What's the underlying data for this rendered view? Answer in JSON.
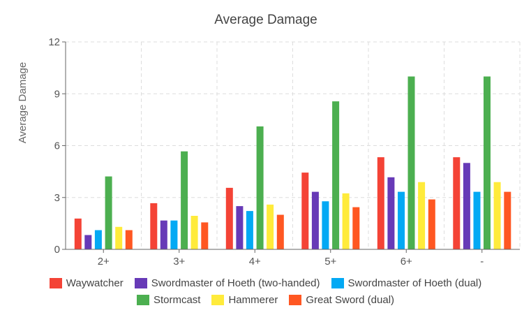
{
  "chart_data": {
    "type": "bar",
    "title": "Average Damage",
    "xlabel": "",
    "ylabel": "Average Damage",
    "ylim": [
      0,
      12
    ],
    "yticks": [
      0,
      3,
      6,
      9,
      12
    ],
    "grid": true,
    "categories": [
      "2+",
      "3+",
      "4+",
      "5+",
      "6+",
      "-"
    ],
    "series": [
      {
        "name": "Waywatcher",
        "color": "#f44336",
        "values": [
          1.78,
          2.67,
          3.56,
          4.44,
          5.33,
          5.33
        ]
      },
      {
        "name": "Swordmaster of Hoeth (two-handed)",
        "color": "#673ab7",
        "values": [
          0.83,
          1.67,
          2.5,
          3.33,
          4.17,
          5.0
        ]
      },
      {
        "name": "Swordmaster of Hoeth (dual)",
        "color": "#03a9f4",
        "values": [
          1.11,
          1.67,
          2.22,
          2.78,
          3.33,
          3.33
        ]
      },
      {
        "name": "Stormcast",
        "color": "#4caf50",
        "values": [
          4.22,
          5.67,
          7.11,
          8.56,
          10.0,
          10.0
        ]
      },
      {
        "name": "Hammerer",
        "color": "#ffeb3b",
        "values": [
          1.3,
          1.94,
          2.59,
          3.24,
          3.89,
          3.89
        ]
      },
      {
        "name": "Great Sword (dual)",
        "color": "#ff5722",
        "values": [
          1.11,
          1.56,
          2.0,
          2.44,
          2.89,
          3.33
        ]
      }
    ],
    "legend_position": "bottom"
  }
}
